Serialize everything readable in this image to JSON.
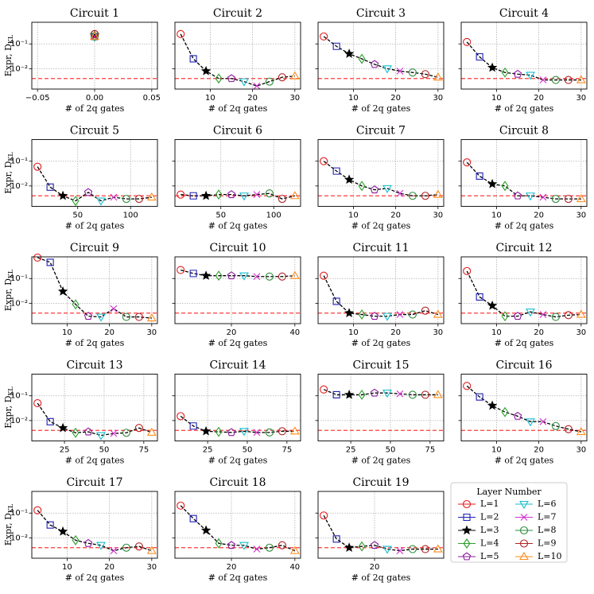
{
  "layers": {
    "title": "Layer Number",
    "position": "lower right",
    "series": [
      {
        "name": "L=1",
        "color": "#e41a1c",
        "marker": "circle"
      },
      {
        "name": "L=2",
        "color": "#1f1fb4",
        "marker": "square"
      },
      {
        "name": "L=3",
        "color": "#000000",
        "marker": "star"
      },
      {
        "name": "L=4",
        "color": "#2ca02c",
        "marker": "diamond"
      },
      {
        "name": "L=5",
        "color": "#8b1a9e",
        "marker": "pentagon"
      },
      {
        "name": "L=6",
        "color": "#17becf",
        "marker": "triangle-down"
      },
      {
        "name": "L=7",
        "color": "#d62ad0",
        "marker": "x"
      },
      {
        "name": "L=8",
        "color": "#2e8b3e",
        "marker": "circle"
      },
      {
        "name": "L=9",
        "color": "#b22222",
        "marker": "circle"
      },
      {
        "name": "L=10",
        "color": "#ff8c1a",
        "marker": "triangle-up"
      }
    ]
  },
  "chart_data": [
    {
      "type": "line",
      "title": "Circuit 1",
      "xlabel": "# of 2q gates",
      "ylabel": "Expr, D",
      "ylabel_sub": "KL",
      "log_y": true,
      "grid": true,
      "hline": 0.004,
      "hline_color": "#ff3b3b",
      "x": [
        0,
        0,
        0,
        0,
        0,
        0,
        0,
        0,
        0,
        0
      ],
      "values": [
        0.25,
        0.2,
        0.22,
        0.2,
        0.2,
        0.2,
        0.2,
        0.2,
        0.25,
        0.2
      ],
      "xlim": [
        -0.055,
        0.055
      ],
      "xticks": [
        {
          "value": -0.05,
          "label": "−0.05"
        },
        {
          "value": 0,
          "label": "0.00"
        },
        {
          "value": 0.05,
          "label": "0.05"
        }
      ],
      "ylim": [
        0.0015,
        0.75
      ],
      "yticks": [
        {
          "value": 0.01,
          "label": "10⁻²"
        },
        {
          "value": 0.1,
          "label": "10⁻¹"
        }
      ]
    },
    {
      "type": "line",
      "title": "Circuit 2",
      "xlabel": "# of 2q gates",
      "log_y": true,
      "grid": true,
      "hline": 0.004,
      "hline_color": "#ff3b3b",
      "x": [
        3,
        6,
        9,
        12,
        15,
        18,
        21,
        24,
        27,
        30
      ],
      "values": [
        0.25,
        0.025,
        0.008,
        0.004,
        0.004,
        0.003,
        0.002,
        0.003,
        0.0045,
        0.005
      ],
      "xlim": [
        1.65,
        31.35
      ],
      "xticks": [
        10,
        20,
        30
      ],
      "ylim": [
        0.0015,
        0.75
      ],
      "yticks": [
        {
          "value": 0.01,
          "label": "10⁻²"
        },
        {
          "value": 0.1,
          "label": "10⁻¹"
        }
      ]
    },
    {
      "type": "line",
      "title": "Circuit 3",
      "xlabel": "# of 2q gates",
      "log_y": true,
      "grid": true,
      "hline": 0.004,
      "hline_color": "#ff3b3b",
      "x": [
        3,
        6,
        9,
        12,
        15,
        18,
        21,
        24,
        27,
        30
      ],
      "values": [
        0.2,
        0.08,
        0.04,
        0.025,
        0.015,
        0.01,
        0.008,
        0.007,
        0.006,
        0.0045
      ],
      "xlim": [
        1.65,
        31.35
      ],
      "xticks": [
        10,
        20,
        30
      ],
      "ylim": [
        0.0015,
        0.75
      ],
      "yticks": [
        {
          "value": 0.01,
          "label": "10⁻²"
        },
        {
          "value": 0.1,
          "label": "10⁻¹"
        }
      ]
    },
    {
      "type": "line",
      "title": "Circuit 4",
      "xlabel": "# of 2q gates",
      "log_y": true,
      "grid": true,
      "hline": 0.004,
      "hline_color": "#ff3b3b",
      "x": [
        3,
        6,
        9,
        12,
        15,
        18,
        21,
        24,
        27,
        30
      ],
      "values": [
        0.12,
        0.03,
        0.011,
        0.007,
        0.006,
        0.0055,
        0.0035,
        0.0035,
        0.0035,
        0.0035
      ],
      "xlim": [
        1.65,
        31.35
      ],
      "xticks": [
        10,
        20,
        30
      ],
      "ylim": [
        0.0015,
        0.75
      ],
      "yticks": [
        {
          "value": 0.01,
          "label": "10⁻²"
        },
        {
          "value": 0.1,
          "label": "10⁻¹"
        }
      ]
    },
    {
      "type": "line",
      "title": "Circuit 5",
      "xlabel": "# of 2q gates",
      "ylabel": "Expr, D",
      "ylabel_sub": "KL",
      "log_y": true,
      "grid": true,
      "hline": 0.004,
      "hline_color": "#ff3b3b",
      "x": [
        12,
        24,
        36,
        48,
        60,
        72,
        84,
        96,
        108,
        120
      ],
      "values": [
        0.06,
        0.009,
        0.004,
        0.0025,
        0.0055,
        0.0025,
        0.0035,
        0.003,
        0.003,
        0.0035
      ],
      "xlim": [
        6.6,
        125.4
      ],
      "xticks": [
        50,
        100
      ],
      "ylim": [
        0.0015,
        0.75
      ],
      "yticks": [
        {
          "value": 0.01,
          "label": "10⁻²"
        },
        {
          "value": 0.1,
          "label": "10⁻¹"
        }
      ]
    },
    {
      "type": "line",
      "title": "Circuit 6",
      "xlabel": "# of 2q gates",
      "log_y": true,
      "grid": true,
      "hline": 0.004,
      "hline_color": "#ff3b3b",
      "x": [
        12,
        24,
        36,
        48,
        60,
        72,
        84,
        96,
        108,
        120
      ],
      "values": [
        0.0045,
        0.004,
        0.004,
        0.0045,
        0.0045,
        0.004,
        0.0045,
        0.005,
        0.003,
        0.004
      ],
      "xlim": [
        6.6,
        125.4
      ],
      "xticks": [
        50,
        100
      ],
      "ylim": [
        0.0015,
        0.75
      ],
      "yticks": [
        {
          "value": 0.01,
          "label": "10⁻²"
        },
        {
          "value": 0.1,
          "label": "10⁻¹"
        }
      ]
    },
    {
      "type": "line",
      "title": "Circuit 7",
      "xlabel": "# of 2q gates",
      "log_y": true,
      "grid": true,
      "hline": 0.004,
      "hline_color": "#ff3b3b",
      "x": [
        3,
        6,
        9,
        12,
        15,
        18,
        21,
        24,
        27,
        30
      ],
      "values": [
        0.1,
        0.04,
        0.018,
        0.01,
        0.007,
        0.008,
        0.005,
        0.004,
        0.004,
        0.0045
      ],
      "xlim": [
        1.65,
        31.35
      ],
      "xticks": [
        10,
        20,
        30
      ],
      "ylim": [
        0.0015,
        0.75
      ],
      "yticks": [
        {
          "value": 0.01,
          "label": "10⁻²"
        },
        {
          "value": 0.1,
          "label": "10⁻¹"
        }
      ]
    },
    {
      "type": "line",
      "title": "Circuit 8",
      "xlabel": "# of 2q gates",
      "log_y": true,
      "grid": true,
      "hline": 0.004,
      "hline_color": "#ff3b3b",
      "x": [
        3,
        6,
        9,
        12,
        15,
        18,
        21,
        24,
        27,
        30
      ],
      "values": [
        0.09,
        0.025,
        0.012,
        0.01,
        0.004,
        0.004,
        0.0035,
        0.003,
        0.003,
        0.003
      ],
      "xlim": [
        1.65,
        31.35
      ],
      "xticks": [
        10,
        20,
        30
      ],
      "ylim": [
        0.0015,
        0.75
      ],
      "yticks": [
        {
          "value": 0.01,
          "label": "10⁻²"
        },
        {
          "value": 0.1,
          "label": "10⁻¹"
        }
      ]
    },
    {
      "type": "line",
      "title": "Circuit 9",
      "xlabel": "# of 2q gates",
      "ylabel": "Expr, D",
      "ylabel_sub": "KL",
      "log_y": true,
      "grid": true,
      "hline": 0.004,
      "hline_color": "#ff3b3b",
      "x": [
        3,
        6,
        9,
        12,
        15,
        18,
        21,
        24,
        27,
        30
      ],
      "values": [
        0.7,
        0.45,
        0.03,
        0.009,
        0.003,
        0.0028,
        0.006,
        0.0028,
        0.0028,
        0.0025
      ],
      "xlim": [
        1.65,
        31.35
      ],
      "xticks": [
        10,
        20,
        30
      ],
      "ylim": [
        0.0015,
        0.75
      ],
      "yticks": [
        {
          "value": 0.01,
          "label": "10⁻²"
        },
        {
          "value": 0.1,
          "label": "10⁻¹"
        }
      ]
    },
    {
      "type": "line",
      "title": "Circuit 10",
      "xlabel": "# of 2q gates",
      "log_y": true,
      "grid": true,
      "hline": 0.004,
      "hline_color": "#ff3b3b",
      "x": [
        4,
        8,
        12,
        16,
        20,
        24,
        28,
        32,
        36,
        40
      ],
      "values": [
        0.22,
        0.16,
        0.13,
        0.13,
        0.13,
        0.13,
        0.12,
        0.12,
        0.12,
        0.13
      ],
      "xlim": [
        2.2,
        41.8
      ],
      "xticks": [
        20,
        40
      ],
      "ylim": [
        0.0015,
        0.75
      ],
      "yticks": [
        {
          "value": 0.01,
          "label": "10⁻²"
        },
        {
          "value": 0.1,
          "label": "10⁻¹"
        }
      ]
    },
    {
      "type": "line",
      "title": "Circuit 11",
      "xlabel": "# of 2q gates",
      "log_y": true,
      "grid": true,
      "hline": 0.004,
      "hline_color": "#ff3b3b",
      "x": [
        3,
        6,
        9,
        12,
        15,
        18,
        21,
        24,
        27,
        30
      ],
      "values": [
        0.13,
        0.012,
        0.004,
        0.0035,
        0.003,
        0.003,
        0.0035,
        0.0035,
        0.005,
        0.0035
      ],
      "xlim": [
        1.65,
        31.35
      ],
      "xticks": [
        10,
        20,
        30
      ],
      "ylim": [
        0.0015,
        0.75
      ],
      "yticks": [
        {
          "value": 0.01,
          "label": "10⁻²"
        },
        {
          "value": 0.1,
          "label": "10⁻¹"
        }
      ]
    },
    {
      "type": "line",
      "title": "Circuit 12",
      "xlabel": "# of 2q gates",
      "log_y": true,
      "grid": true,
      "hline": 0.004,
      "hline_color": "#ff3b3b",
      "x": [
        3,
        6,
        9,
        12,
        15,
        18,
        21,
        24,
        27,
        30
      ],
      "values": [
        0.2,
        0.018,
        0.008,
        0.003,
        0.003,
        0.0045,
        0.0035,
        0.0028,
        0.0033,
        0.0035
      ],
      "xlim": [
        1.65,
        31.35
      ],
      "xticks": [
        10,
        20,
        30
      ],
      "ylim": [
        0.0015,
        0.75
      ],
      "yticks": [
        {
          "value": 0.01,
          "label": "10⁻²"
        },
        {
          "value": 0.1,
          "label": "10⁻¹"
        }
      ]
    },
    {
      "type": "line",
      "title": "Circuit 13",
      "xlabel": "# of 2q gates",
      "ylabel": "Expr, D",
      "ylabel_sub": "KL",
      "log_y": true,
      "grid": true,
      "hline": 0.004,
      "hline_color": "#ff3b3b",
      "x": [
        8,
        16,
        24,
        32,
        40,
        48,
        56,
        64,
        72,
        80
      ],
      "values": [
        0.05,
        0.009,
        0.005,
        0.0032,
        0.0035,
        0.0025,
        0.003,
        0.0032,
        0.005,
        0.0033
      ],
      "xlim": [
        4.4,
        83.6
      ],
      "xticks": [
        25,
        50,
        75
      ],
      "ylim": [
        0.0015,
        0.75
      ],
      "yticks": [
        {
          "value": 0.01,
          "label": "10⁻²"
        },
        {
          "value": 0.1,
          "label": "10⁻¹"
        }
      ]
    },
    {
      "type": "line",
      "title": "Circuit 14",
      "xlabel": "# of 2q gates",
      "log_y": true,
      "grid": true,
      "hline": 0.004,
      "hline_color": "#ff3b3b",
      "x": [
        8,
        16,
        24,
        32,
        40,
        48,
        56,
        64,
        72,
        80
      ],
      "values": [
        0.015,
        0.006,
        0.0037,
        0.0035,
        0.0033,
        0.0037,
        0.0033,
        0.0033,
        0.0037,
        0.0037
      ],
      "xlim": [
        4.4,
        83.6
      ],
      "xticks": [
        25,
        50,
        75
      ],
      "ylim": [
        0.0015,
        0.75
      ],
      "yticks": [
        {
          "value": 0.01,
          "label": "10⁻²"
        },
        {
          "value": 0.1,
          "label": "10⁻¹"
        }
      ]
    },
    {
      "type": "line",
      "title": "Circuit 15",
      "xlabel": "# of 2q gates",
      "log_y": true,
      "grid": true,
      "hline": 0.004,
      "hline_color": "#ff3b3b",
      "x": [
        8,
        16,
        24,
        32,
        40,
        48,
        56,
        64,
        72,
        80
      ],
      "values": [
        0.18,
        0.11,
        0.11,
        0.11,
        0.13,
        0.13,
        0.12,
        0.11,
        0.11,
        0.11
      ],
      "xlim": [
        4.4,
        83.6
      ],
      "xticks": [
        25,
        50,
        75
      ],
      "ylim": [
        0.0015,
        0.75
      ],
      "yticks": [
        {
          "value": 0.01,
          "label": "10⁻²"
        },
        {
          "value": 0.1,
          "label": "10⁻¹"
        }
      ]
    },
    {
      "type": "line",
      "title": "Circuit 16",
      "xlabel": "# of 2q gates",
      "log_y": true,
      "grid": true,
      "hline": 0.004,
      "hline_color": "#ff3b3b",
      "x": [
        3,
        6,
        9,
        12,
        15,
        18,
        21,
        24,
        27,
        30
      ],
      "values": [
        0.25,
        0.09,
        0.04,
        0.022,
        0.015,
        0.009,
        0.009,
        0.006,
        0.0045,
        0.0035
      ],
      "xlim": [
        1.65,
        31.35
      ],
      "xticks": [
        10,
        20,
        30
      ],
      "ylim": [
        0.0015,
        0.75
      ],
      "yticks": [
        {
          "value": 0.01,
          "label": "10⁻²"
        },
        {
          "value": 0.1,
          "label": "10⁻¹"
        }
      ]
    },
    {
      "type": "line",
      "title": "Circuit 17",
      "xlabel": "# of 2q gates",
      "ylabel": "Expr, D",
      "ylabel_sub": "KL",
      "log_y": true,
      "grid": true,
      "hline": 0.004,
      "hline_color": "#ff3b3b",
      "x": [
        3,
        6,
        9,
        12,
        15,
        18,
        21,
        24,
        27,
        30
      ],
      "values": [
        0.13,
        0.033,
        0.018,
        0.008,
        0.006,
        0.005,
        0.003,
        0.004,
        0.0045,
        0.003
      ],
      "xlim": [
        1.65,
        31.35
      ],
      "xticks": [
        10,
        20,
        30
      ],
      "ylim": [
        0.0015,
        0.75
      ],
      "yticks": [
        {
          "value": 0.01,
          "label": "10⁻²"
        },
        {
          "value": 0.1,
          "label": "10⁻¹"
        }
      ]
    },
    {
      "type": "line",
      "title": "Circuit 18",
      "xlabel": "# of 2q gates",
      "log_y": true,
      "grid": true,
      "hline": 0.004,
      "hline_color": "#ff3b3b",
      "x": [
        4,
        8,
        12,
        16,
        20,
        24,
        28,
        32,
        36,
        40
      ],
      "values": [
        0.2,
        0.06,
        0.02,
        0.006,
        0.005,
        0.005,
        0.0035,
        0.004,
        0.005,
        0.003
      ],
      "xlim": [
        2.2,
        41.8
      ],
      "xticks": [
        20,
        40
      ],
      "ylim": [
        0.0015,
        0.75
      ],
      "yticks": [
        {
          "value": 0.01,
          "label": "10⁻²"
        },
        {
          "value": 0.1,
          "label": "10⁻¹"
        }
      ]
    },
    {
      "type": "line",
      "title": "Circuit 19",
      "xlabel": "# of 2q gates",
      "log_y": true,
      "grid": true,
      "hline": 0.004,
      "hline_color": "#ff3b3b",
      "x": [
        4,
        8,
        12,
        16,
        20,
        24,
        28,
        32,
        36,
        40
      ],
      "values": [
        0.08,
        0.009,
        0.004,
        0.0045,
        0.005,
        0.0035,
        0.003,
        0.0035,
        0.0035,
        0.0035
      ],
      "xlim": [
        2.2,
        41.8
      ],
      "xticks": [
        20
      ],
      "ylim": [
        0.0015,
        0.75
      ],
      "yticks": [
        {
          "value": 0.01,
          "label": "10⁻²"
        },
        {
          "value": 0.1,
          "label": "10⁻¹"
        }
      ]
    }
  ]
}
